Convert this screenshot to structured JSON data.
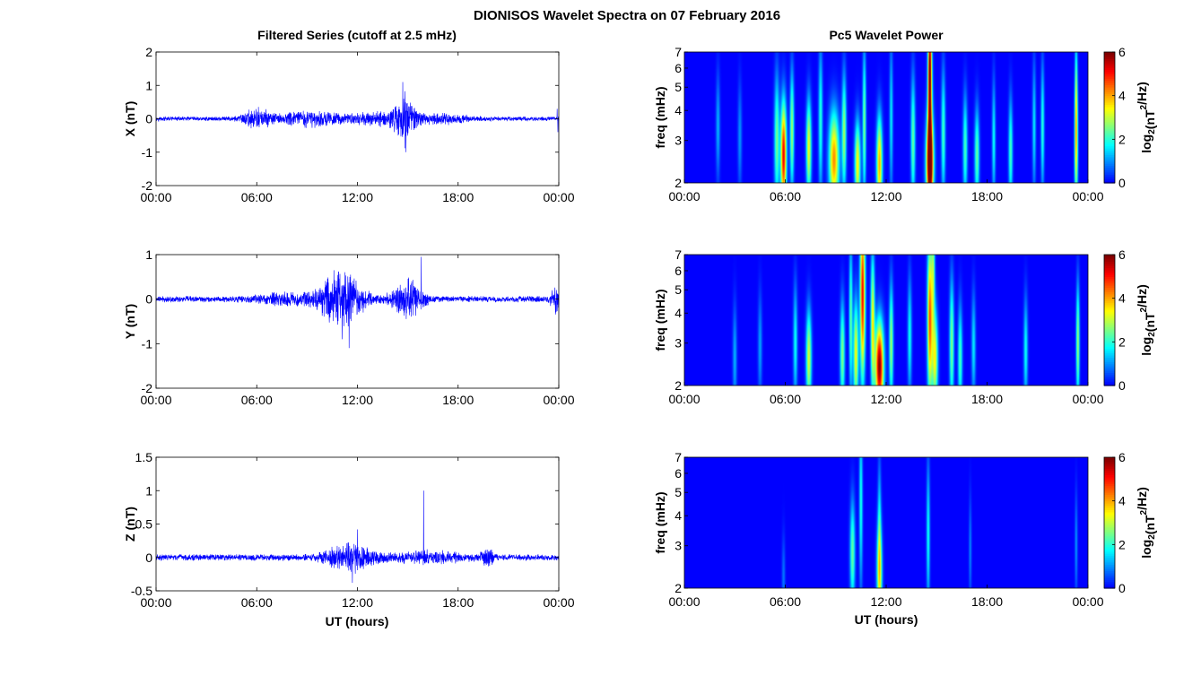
{
  "figure": {
    "title": "DIONISOS Wavelet Spectra on 07 February 2016",
    "left_title": "Filtered Series (cutoff at 2.5 mHz)",
    "right_title": "Pc5 Wavelet Power",
    "xlabel": "UT (hours)",
    "freq_label": "freq (mHz)",
    "colorbar_label_base": "log",
    "colorbar_label_sub": "2",
    "colorbar_label_rest": "(nT",
    "colorbar_label_sup": "2",
    "colorbar_label_end": "/Hz)"
  },
  "colors": {
    "series": "#0000ff",
    "axes": "#000000",
    "background": "#ffffff",
    "colormap": "jet"
  },
  "chart_data": [
    {
      "type": "line",
      "ylabel": "X (nT)",
      "x_ticks": [
        "00:00",
        "06:00",
        "12:00",
        "18:00",
        "00:00"
      ],
      "xlim_hours": [
        0,
        24
      ],
      "ylim": [
        -2,
        2
      ],
      "y_ticks": [
        "2",
        "1",
        "0",
        "-1",
        "-2"
      ],
      "y_tick_values": [
        2,
        1,
        0,
        -1,
        -2
      ],
      "base_amplitude": 0.05,
      "bursts": [
        {
          "center": 6.0,
          "width": 0.8,
          "amp": 0.18
        },
        {
          "center": 9.0,
          "width": 2.0,
          "amp": 0.15
        },
        {
          "center": 14.8,
          "width": 0.5,
          "amp": 0.55
        },
        {
          "center": 13.5,
          "width": 2.0,
          "amp": 0.12
        },
        {
          "center": 17.0,
          "width": 1.5,
          "amp": 0.1
        }
      ],
      "spikes": [
        {
          "x": 14.7,
          "y": 1.1
        },
        {
          "x": 14.9,
          "y": -1.0
        },
        {
          "x": 23.9,
          "y": 0.3
        },
        {
          "x": 23.95,
          "y": -0.4
        }
      ]
    },
    {
      "type": "line",
      "ylabel": "Y (nT)",
      "x_ticks": [
        "00:00",
        "06:00",
        "12:00",
        "18:00",
        "00:00"
      ],
      "xlim_hours": [
        0,
        24
      ],
      "ylim": [
        -2,
        1
      ],
      "y_ticks": [
        "1",
        "0",
        "-1",
        "-2"
      ],
      "y_tick_values": [
        1,
        0,
        -1,
        -2
      ],
      "base_amplitude": 0.05,
      "bursts": [
        {
          "center": 11.0,
          "width": 1.3,
          "amp": 0.45
        },
        {
          "center": 15.0,
          "width": 0.9,
          "amp": 0.3
        },
        {
          "center": 7.5,
          "width": 1.5,
          "amp": 0.08
        },
        {
          "center": 23.8,
          "width": 0.3,
          "amp": 0.2
        }
      ],
      "spikes": [
        {
          "x": 11.5,
          "y": -1.1
        },
        {
          "x": 15.8,
          "y": 0.95
        },
        {
          "x": 10.6,
          "y": 0.65
        },
        {
          "x": 11.1,
          "y": -0.9
        }
      ]
    },
    {
      "type": "line",
      "ylabel": "Z (nT)",
      "x_ticks": [
        "00:00",
        "06:00",
        "12:00",
        "18:00",
        "00:00"
      ],
      "xlim_hours": [
        0,
        24
      ],
      "ylim": [
        -0.5,
        1.5
      ],
      "y_ticks": [
        "1.5",
        "1",
        "0.5",
        "0",
        "-0.5"
      ],
      "y_tick_values": [
        1.5,
        1,
        0.5,
        0,
        -0.5
      ],
      "base_amplitude": 0.035,
      "bursts": [
        {
          "center": 11.5,
          "width": 1.3,
          "amp": 0.14
        },
        {
          "center": 16.0,
          "width": 2.5,
          "amp": 0.05
        },
        {
          "center": 19.8,
          "width": 0.4,
          "amp": 0.07
        }
      ],
      "spikes": [
        {
          "x": 15.95,
          "y": 1.0
        },
        {
          "x": 12.0,
          "y": 0.42
        },
        {
          "x": 11.7,
          "y": -0.38
        }
      ]
    },
    {
      "type": "heatmap",
      "ylabel": "freq (mHz)",
      "x_ticks": [
        "00:00",
        "06:00",
        "12:00",
        "18:00",
        "00:00"
      ],
      "xlim_hours": [
        0,
        24
      ],
      "ylim_mhz": [
        2,
        7
      ],
      "y_scale": "log",
      "y_ticks": [
        "7",
        "6",
        "5",
        "4",
        "3",
        "2"
      ],
      "y_tick_values": [
        7,
        6,
        5,
        4,
        3,
        2
      ],
      "colorbar_range": [
        0,
        6
      ],
      "colorbar_ticks": [
        "6",
        "4",
        "2",
        "0"
      ],
      "blobs": [
        {
          "t": 5.9,
          "f": 2.6,
          "amp": 5.3,
          "st": 0.17,
          "sf": 0.5
        },
        {
          "t": 5.5,
          "f": 3.0,
          "amp": 2.5,
          "st": 0.15,
          "sf": 0.6
        },
        {
          "t": 6.4,
          "f": 3.3,
          "amp": 2.8,
          "st": 0.12,
          "sf": 0.55
        },
        {
          "t": 7.4,
          "f": 2.8,
          "amp": 3.4,
          "st": 0.15,
          "sf": 0.45
        },
        {
          "t": 8.1,
          "f": 3.6,
          "amp": 2.0,
          "st": 0.12,
          "sf": 0.7
        },
        {
          "t": 8.9,
          "f": 2.5,
          "amp": 4.2,
          "st": 0.3,
          "sf": 0.45
        },
        {
          "t": 9.5,
          "f": 3.2,
          "amp": 2.8,
          "st": 0.13,
          "sf": 0.55
        },
        {
          "t": 10.3,
          "f": 2.4,
          "amp": 3.5,
          "st": 0.17,
          "sf": 0.4
        },
        {
          "t": 10.7,
          "f": 3.5,
          "amp": 2.6,
          "st": 0.1,
          "sf": 0.7
        },
        {
          "t": 11.6,
          "f": 2.4,
          "amp": 4.0,
          "st": 0.17,
          "sf": 0.45
        },
        {
          "t": 12.3,
          "f": 3.7,
          "amp": 1.6,
          "st": 0.1,
          "sf": 0.7
        },
        {
          "t": 13.6,
          "f": 3.0,
          "amp": 2.4,
          "st": 0.13,
          "sf": 0.6
        },
        {
          "t": 14.6,
          "f": 2.4,
          "amp": 6.0,
          "st": 0.22,
          "sf": 0.42
        },
        {
          "t": 14.6,
          "f": 4.2,
          "amp": 4.6,
          "st": 0.13,
          "sf": 0.75
        },
        {
          "t": 14.6,
          "f": 6.5,
          "amp": 2.8,
          "st": 0.1,
          "sf": 0.4
        },
        {
          "t": 15.4,
          "f": 3.2,
          "amp": 2.2,
          "st": 0.12,
          "sf": 0.6
        },
        {
          "t": 16.7,
          "f": 2.8,
          "amp": 2.2,
          "st": 0.13,
          "sf": 0.5
        },
        {
          "t": 17.4,
          "f": 2.6,
          "amp": 2.4,
          "st": 0.14,
          "sf": 0.45
        },
        {
          "t": 18.4,
          "f": 3.0,
          "amp": 1.8,
          "st": 0.1,
          "sf": 0.55
        },
        {
          "t": 19.4,
          "f": 2.7,
          "amp": 2.2,
          "st": 0.12,
          "sf": 0.5
        },
        {
          "t": 20.8,
          "f": 3.4,
          "amp": 1.6,
          "st": 0.1,
          "sf": 0.6
        },
        {
          "t": 21.3,
          "f": 3.4,
          "amp": 2.0,
          "st": 0.1,
          "sf": 0.6
        },
        {
          "t": 23.3,
          "f": 2.8,
          "amp": 3.2,
          "st": 0.1,
          "sf": 0.55
        },
        {
          "t": 23.3,
          "f": 4.8,
          "amp": 2.0,
          "st": 0.08,
          "sf": 0.55
        },
        {
          "t": 2.0,
          "f": 3.4,
          "amp": 1.2,
          "st": 0.12,
          "sf": 0.5
        },
        {
          "t": 3.3,
          "f": 3.1,
          "amp": 1.0,
          "st": 0.12,
          "sf": 0.5
        }
      ]
    },
    {
      "type": "heatmap",
      "ylabel": "freq (mHz)",
      "x_ticks": [
        "00:00",
        "06:00",
        "12:00",
        "18:00",
        "00:00"
      ],
      "xlim_hours": [
        0,
        24
      ],
      "ylim_mhz": [
        2,
        7
      ],
      "y_scale": "log",
      "y_ticks": [
        "7",
        "6",
        "5",
        "4",
        "3",
        "2"
      ],
      "y_tick_values": [
        7,
        6,
        5,
        4,
        3,
        2
      ],
      "colorbar_range": [
        0,
        6
      ],
      "colorbar_ticks": [
        "6",
        "4",
        "2",
        "0"
      ],
      "blobs": [
        {
          "t": 11.6,
          "f": 2.4,
          "amp": 6.0,
          "st": 0.25,
          "sf": 0.42
        },
        {
          "t": 10.6,
          "f": 4.8,
          "amp": 5.2,
          "st": 0.15,
          "sf": 0.8
        },
        {
          "t": 10.2,
          "f": 2.7,
          "amp": 3.4,
          "st": 0.15,
          "sf": 0.5
        },
        {
          "t": 11.2,
          "f": 3.6,
          "amp": 3.5,
          "st": 0.12,
          "sf": 0.65
        },
        {
          "t": 12.3,
          "f": 3.0,
          "amp": 2.8,
          "st": 0.12,
          "sf": 0.55
        },
        {
          "t": 9.4,
          "f": 2.7,
          "amp": 2.6,
          "st": 0.14,
          "sf": 0.5
        },
        {
          "t": 9.9,
          "f": 3.8,
          "amp": 2.4,
          "st": 0.1,
          "sf": 0.7
        },
        {
          "t": 7.4,
          "f": 2.6,
          "amp": 3.2,
          "st": 0.16,
          "sf": 0.45
        },
        {
          "t": 6.6,
          "f": 3.0,
          "amp": 1.8,
          "st": 0.12,
          "sf": 0.55
        },
        {
          "t": 14.6,
          "f": 3.8,
          "amp": 4.6,
          "st": 0.15,
          "sf": 0.75
        },
        {
          "t": 14.9,
          "f": 2.6,
          "amp": 3.4,
          "st": 0.17,
          "sf": 0.45
        },
        {
          "t": 14.8,
          "f": 6.0,
          "amp": 2.4,
          "st": 0.1,
          "sf": 0.5
        },
        {
          "t": 15.9,
          "f": 3.0,
          "amp": 2.6,
          "st": 0.13,
          "sf": 0.6
        },
        {
          "t": 16.4,
          "f": 2.6,
          "amp": 2.2,
          "st": 0.13,
          "sf": 0.5
        },
        {
          "t": 13.4,
          "f": 3.2,
          "amp": 1.8,
          "st": 0.12,
          "sf": 0.55
        },
        {
          "t": 17.2,
          "f": 2.9,
          "amp": 1.6,
          "st": 0.12,
          "sf": 0.5
        },
        {
          "t": 20.3,
          "f": 2.8,
          "amp": 1.8,
          "st": 0.12,
          "sf": 0.5
        },
        {
          "t": 23.4,
          "f": 3.0,
          "amp": 2.8,
          "st": 0.1,
          "sf": 0.55
        },
        {
          "t": 3.0,
          "f": 2.6,
          "amp": 1.2,
          "st": 0.12,
          "sf": 0.5
        },
        {
          "t": 4.5,
          "f": 2.9,
          "amp": 1.1,
          "st": 0.12,
          "sf": 0.5
        }
      ]
    },
    {
      "type": "heatmap",
      "ylabel": "freq (mHz)",
      "x_ticks": [
        "00:00",
        "06:00",
        "12:00",
        "18:00",
        "00:00"
      ],
      "xlim_hours": [
        0,
        24
      ],
      "ylim_mhz": [
        2,
        7
      ],
      "y_scale": "log",
      "y_ticks": [
        "7",
        "6",
        "5",
        "4",
        "3",
        "2"
      ],
      "y_tick_values": [
        7,
        6,
        5,
        4,
        3,
        2
      ],
      "colorbar_range": [
        0,
        6
      ],
      "colorbar_ticks": [
        "6",
        "4",
        "2",
        "0"
      ],
      "blobs": [
        {
          "t": 11.6,
          "f": 2.3,
          "amp": 3.3,
          "st": 0.16,
          "sf": 0.45
        },
        {
          "t": 10.0,
          "f": 2.8,
          "amp": 2.4,
          "st": 0.15,
          "sf": 0.5
        },
        {
          "t": 10.5,
          "f": 4.5,
          "amp": 1.9,
          "st": 0.1,
          "sf": 0.8
        },
        {
          "t": 14.5,
          "f": 3.3,
          "amp": 1.8,
          "st": 0.1,
          "sf": 0.7
        },
        {
          "t": 11.6,
          "f": 3.8,
          "amp": 1.4,
          "st": 0.1,
          "sf": 0.6
        },
        {
          "t": 5.9,
          "f": 2.2,
          "amp": 0.8,
          "st": 0.1,
          "sf": 0.4
        },
        {
          "t": 17.0,
          "f": 2.9,
          "amp": 0.9,
          "st": 0.08,
          "sf": 0.5
        },
        {
          "t": 23.3,
          "f": 3.0,
          "amp": 1.0,
          "st": 0.08,
          "sf": 0.5
        }
      ]
    }
  ]
}
